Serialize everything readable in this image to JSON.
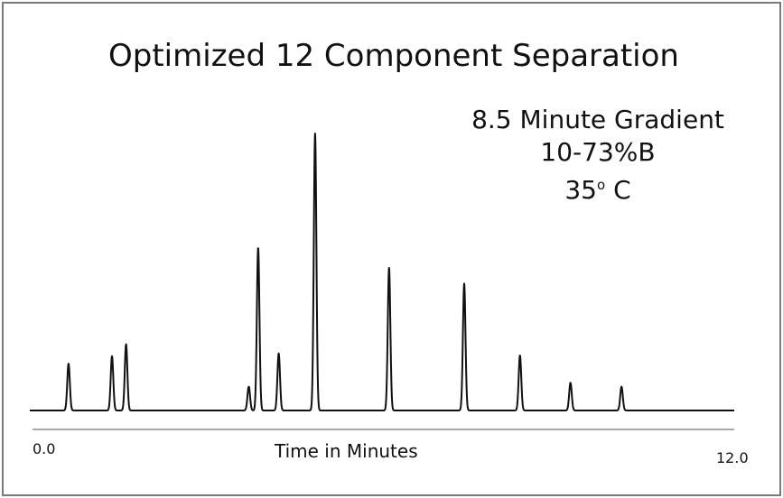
{
  "chart_data": {
    "type": "line",
    "title": "Optimized 12 Component Separation",
    "annotation_lines": [
      "8.5 Minute Gradient",
      "10-73%B",
      "35"
    ],
    "annotation_degree": "o",
    "annotation_unit": " C",
    "xlabel": "Time in Minutes",
    "ylabel": "",
    "xlim": [
      0.0,
      12.0
    ],
    "x_tick_labels": [
      "0.0",
      "12.0"
    ],
    "grid": false,
    "baseline": 0,
    "ylim": [
      0,
      100
    ],
    "series": [
      {
        "peaks": [
          {
            "x": 0.66,
            "y": 16.9
          },
          {
            "x": 1.4,
            "y": 19.6
          },
          {
            "x": 1.64,
            "y": 23.9
          },
          {
            "x": 3.73,
            "y": 8.6
          },
          {
            "x": 3.89,
            "y": 58.8
          },
          {
            "x": 4.24,
            "y": 20.6
          },
          {
            "x": 4.86,
            "y": 100.0
          },
          {
            "x": 6.12,
            "y": 51.5
          },
          {
            "x": 7.4,
            "y": 45.8
          },
          {
            "x": 8.35,
            "y": 19.9
          },
          {
            "x": 9.21,
            "y": 10.0
          },
          {
            "x": 10.08,
            "y": 8.6
          }
        ]
      }
    ]
  }
}
